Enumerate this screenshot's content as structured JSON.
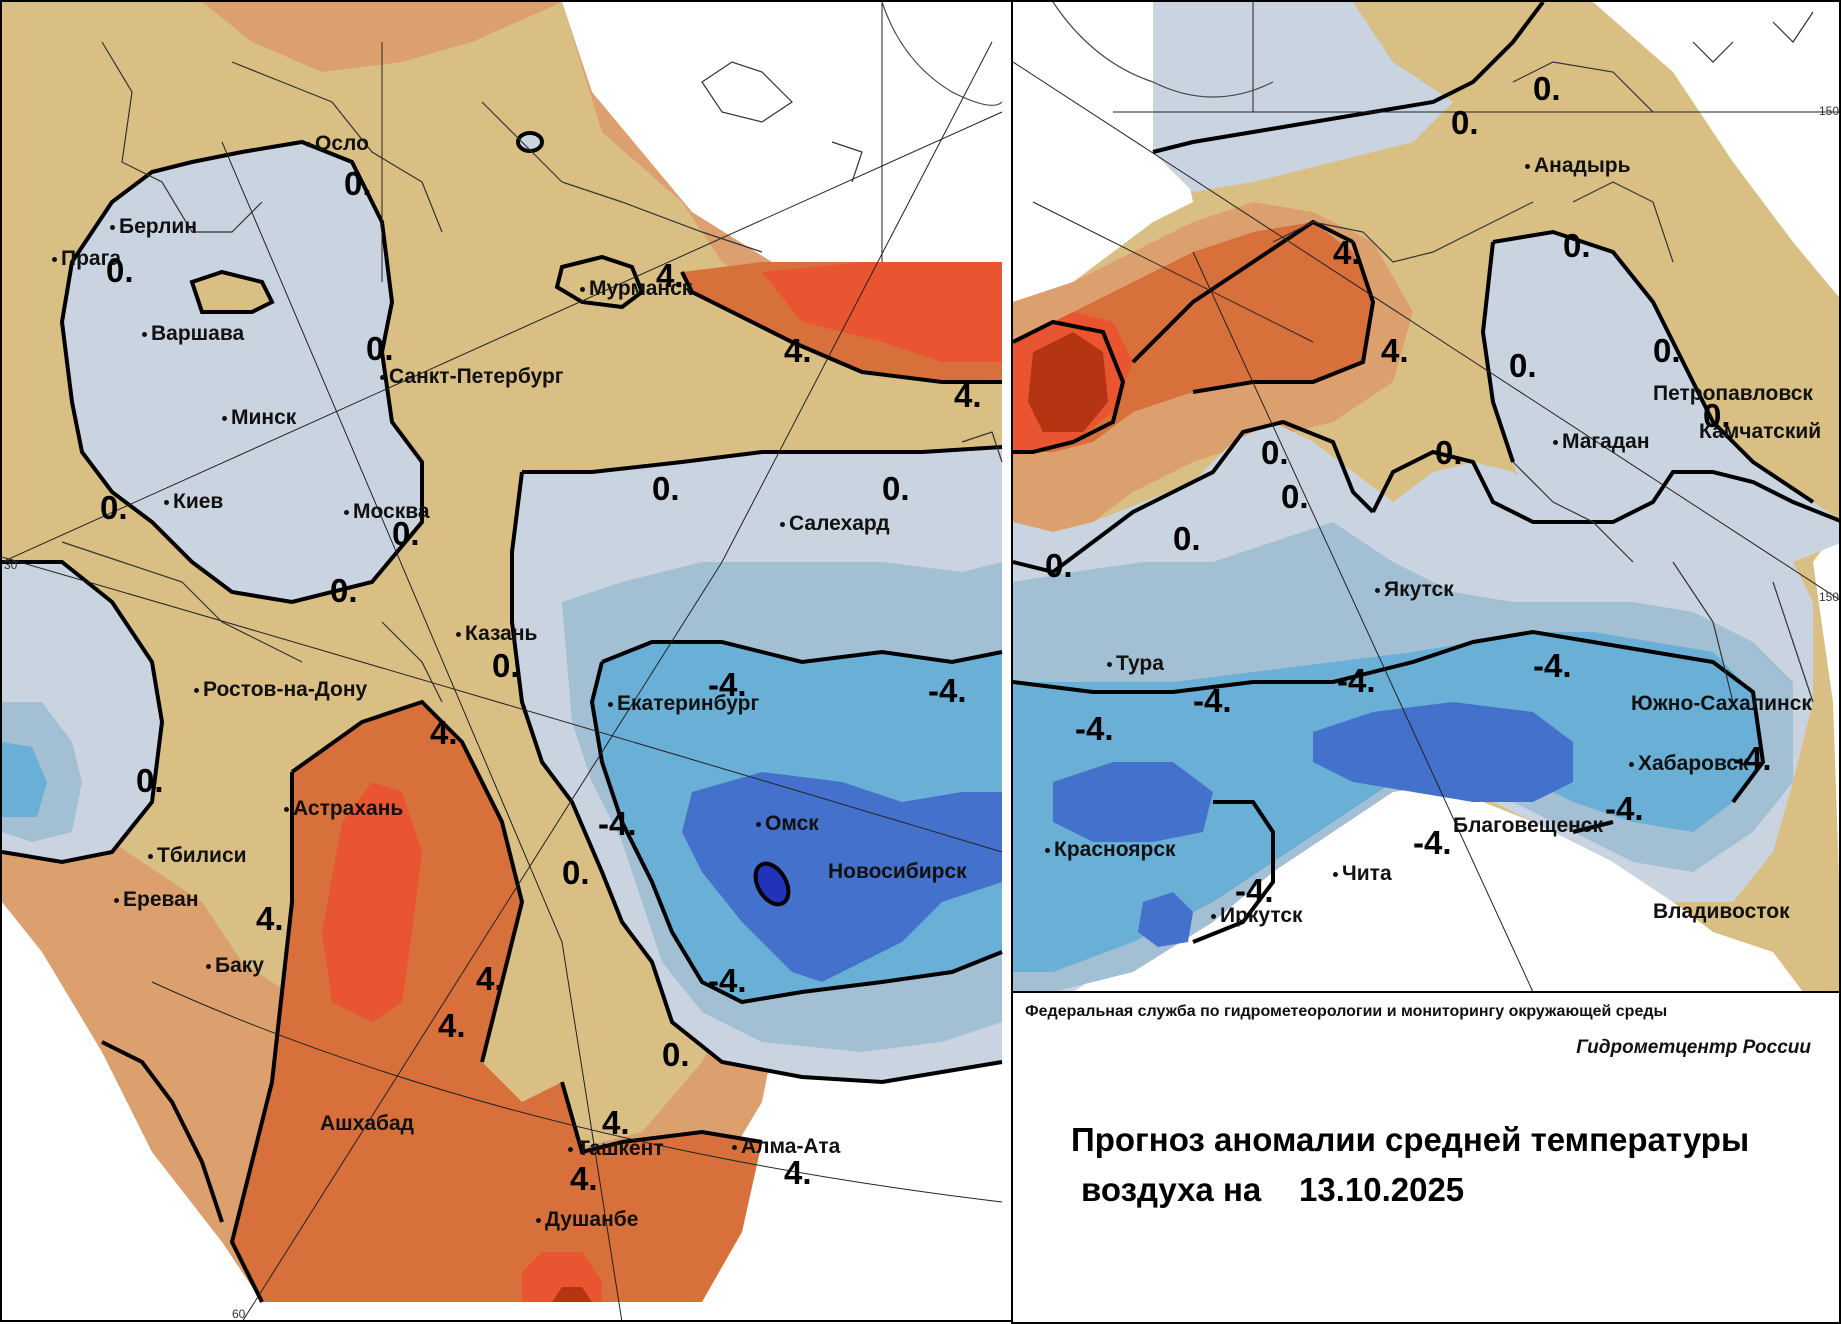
{
  "colors": {
    "warm1": "#d9bf84",
    "warm2": "#dca06f",
    "warm3": "#d8703c",
    "warm4": "#e85530",
    "warm5": "#b53512",
    "cool1": "#c9d4e0",
    "cool2": "#a3bfd4",
    "cool3": "#6aafd6",
    "cool4": "#4471cc"
  },
  "left_panel": {
    "cities": [
      {
        "name": "Осло"
      },
      {
        "name": "Берлин"
      },
      {
        "name": "Прага"
      },
      {
        "name": "Варшава"
      },
      {
        "name": "Санкт-Петербург"
      },
      {
        "name": "Минск"
      },
      {
        "name": "Киев"
      },
      {
        "name": "Москва"
      },
      {
        "name": "Мурманск"
      },
      {
        "name": "Салехард"
      },
      {
        "name": "Казань"
      },
      {
        "name": "Ростов-на-Дону"
      },
      {
        "name": "Екатеринбург"
      },
      {
        "name": "Астрахань"
      },
      {
        "name": "Тбилиси"
      },
      {
        "name": "Ереван"
      },
      {
        "name": "Омск"
      },
      {
        "name": "Новосибирск"
      },
      {
        "name": "Баку"
      },
      {
        "name": "Ашхабад"
      },
      {
        "name": "Ташкент"
      },
      {
        "name": "Алма-Ата"
      },
      {
        "name": "Душанбе"
      }
    ],
    "iso_labels": [
      "0.",
      "0.",
      "0.",
      "0.",
      "0.",
      "0.",
      "0.",
      "0.",
      "0.",
      "0.",
      "0.",
      "0.",
      "4.",
      "4.",
      "4.",
      "4.",
      "4.",
      "4.",
      "4.",
      "4.",
      "4.",
      "4.",
      "-4.",
      "-4.",
      "-4.",
      "-4."
    ],
    "ticks": {
      "lat": "30",
      "lon": "60"
    }
  },
  "right_panel": {
    "cities": [
      {
        "name": "Анадырь"
      },
      {
        "name": "Петропавловск"
      },
      {
        "name": "Камчатский"
      },
      {
        "name": "Магадан"
      },
      {
        "name": "Якутск"
      },
      {
        "name": "Тура"
      },
      {
        "name": "Южно-Сахалинск"
      },
      {
        "name": "Хабаровск"
      },
      {
        "name": "Благовещенск"
      },
      {
        "name": "Красноярск"
      },
      {
        "name": "Чита"
      },
      {
        "name": "Иркутск"
      },
      {
        "name": "Владивосток"
      }
    ],
    "iso_labels": [
      "0.",
      "0.",
      "0.",
      "0.",
      "0.",
      "0.",
      "0.",
      "0.",
      "0.",
      "0.",
      "0.",
      "4.",
      "4.",
      "-4.",
      "-4.",
      "-4.",
      "-4.",
      "-4.",
      "-4.",
      "-4.",
      "-4."
    ],
    "ticks": {
      "lon1": "150",
      "lon2": "150"
    }
  },
  "legend": {
    "agency": "Федеральная служба по гидрометеорологии и мониторингу окружающей среды",
    "center": "Гидрометцентр России",
    "title_line1": "Прогноз аномалии средней температуры",
    "title_line2": "воздуха на",
    "date": "13.10.2025"
  }
}
